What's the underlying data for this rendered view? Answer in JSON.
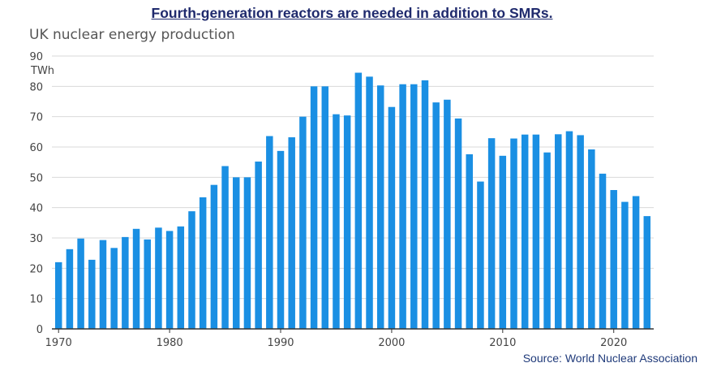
{
  "headline": "Fourth-generation reactors are needed in addition to SMRs.",
  "source": "Source: World Nuclear Association",
  "colors": {
    "bar": "#1a8fe3",
    "grid": "#d9d9d9",
    "axis": "#333333",
    "headline": "#1f2a6d"
  },
  "chart_data": {
    "type": "bar",
    "title": "UK nuclear energy production",
    "ylabel": "TWh",
    "xlabel": "",
    "ylim": [
      0,
      90
    ],
    "yticks": [
      0,
      10,
      20,
      30,
      40,
      50,
      60,
      70,
      80,
      90
    ],
    "xticks": [
      1970,
      1980,
      1990,
      2000,
      2010,
      2020
    ],
    "grid": true,
    "legend": "none",
    "categories": [
      1970,
      1971,
      1972,
      1973,
      1974,
      1975,
      1976,
      1977,
      1978,
      1979,
      1980,
      1981,
      1982,
      1983,
      1984,
      1985,
      1986,
      1987,
      1988,
      1989,
      1990,
      1991,
      1992,
      1993,
      1994,
      1995,
      1996,
      1997,
      1998,
      1999,
      2000,
      2001,
      2002,
      2003,
      2004,
      2005,
      2006,
      2007,
      2008,
      2009,
      2010,
      2011,
      2012,
      2013,
      2014,
      2015,
      2016,
      2017,
      2018,
      2019,
      2020,
      2021,
      2022,
      2023
    ],
    "values": [
      22,
      26.3,
      29.8,
      22.8,
      29.3,
      26.7,
      30.3,
      33,
      29.5,
      33.4,
      32.3,
      33.8,
      38.8,
      43.4,
      47.5,
      53.7,
      50,
      50,
      55.2,
      63.6,
      58.7,
      63.2,
      70,
      80,
      80,
      70.8,
      70.4,
      84.5,
      83.2,
      80.3,
      73.2,
      80.7,
      80.7,
      82,
      74.7,
      75.6,
      69.4,
      57.6,
      48.6,
      62.9,
      57.1,
      62.8,
      64.1,
      64.1,
      58.2,
      64.2,
      65.2,
      63.9,
      59.2,
      51.2,
      45.8,
      41.9,
      43.8,
      37.2
    ]
  }
}
